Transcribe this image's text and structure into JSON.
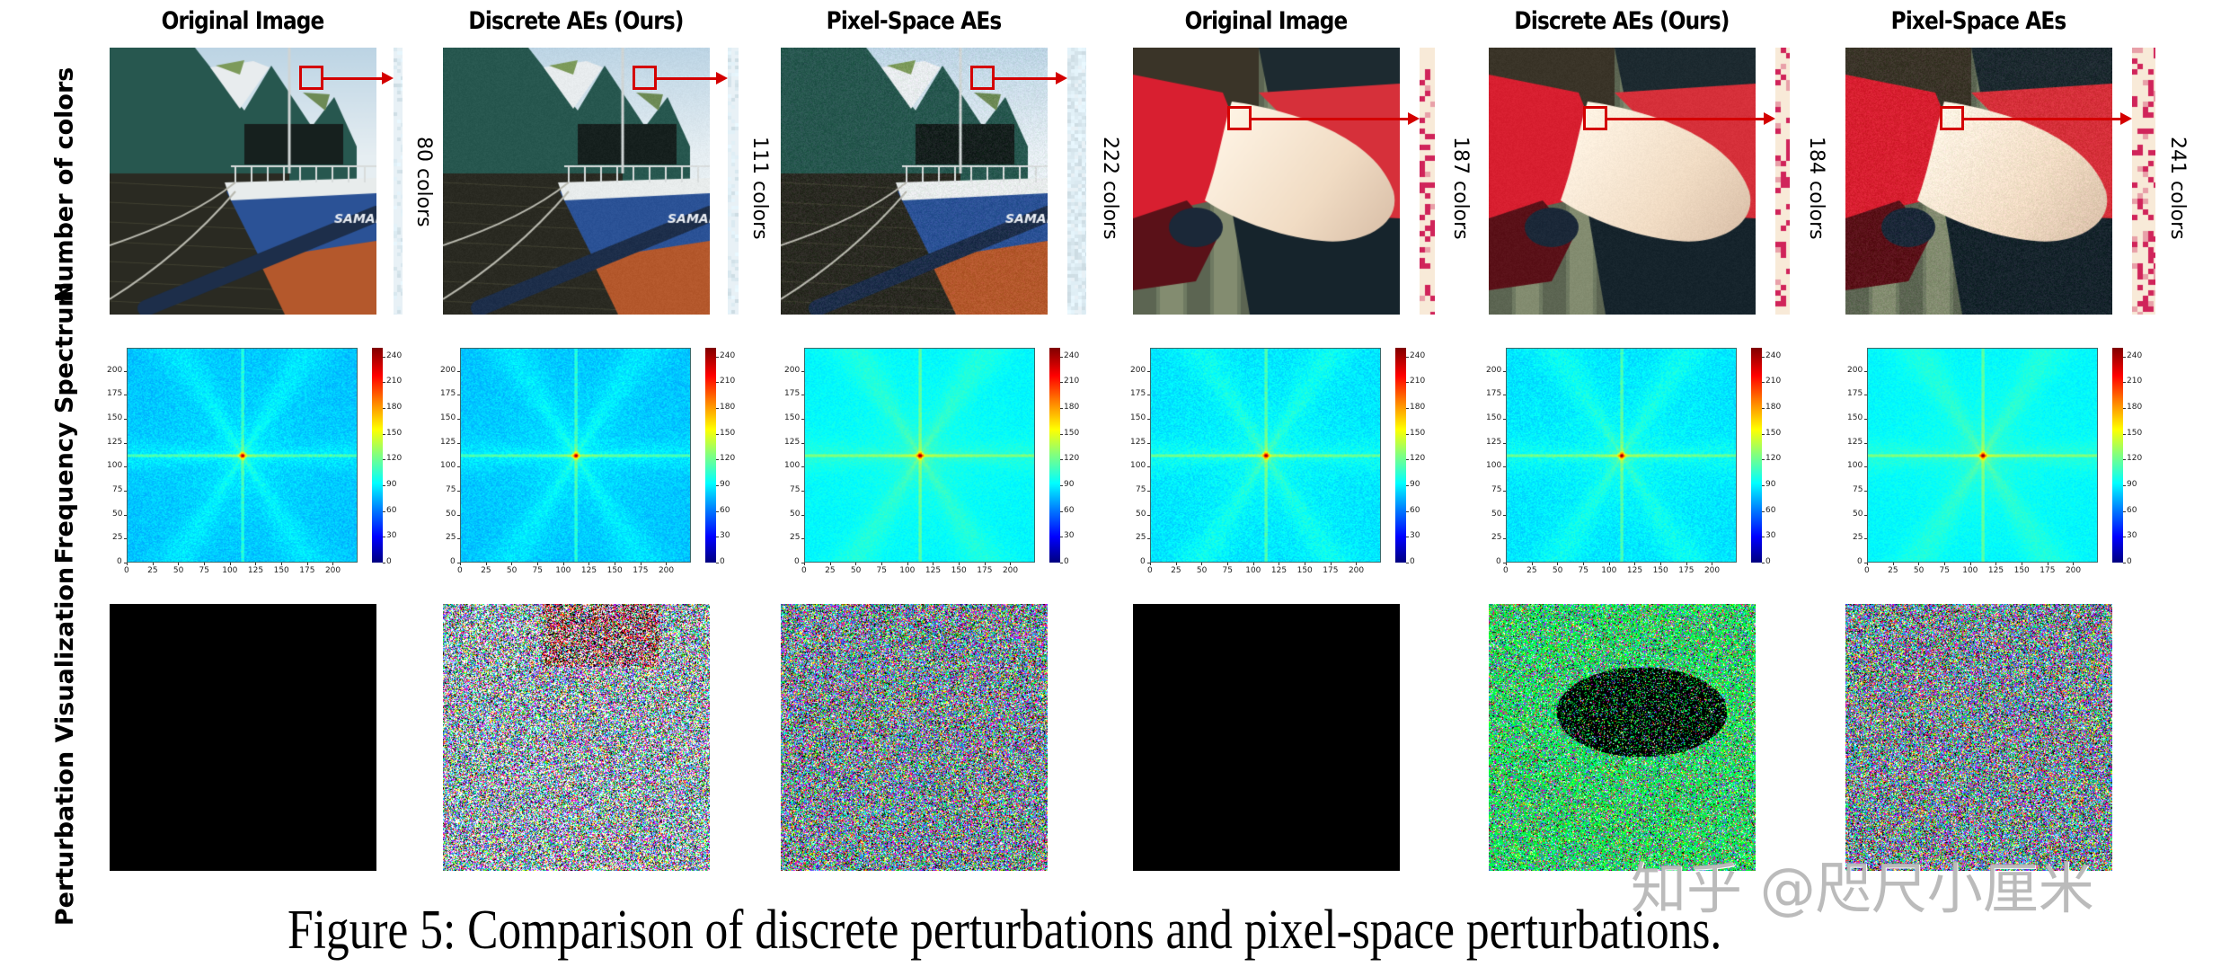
{
  "figure": {
    "caption": "Figure 5: Comparison of discrete perturbations and pixel-space perturbations.",
    "watermark": "知乎 @咫尺小厘米",
    "row_labels": [
      "Number of colors",
      "Frequency Spectrum",
      "Perturbation Visualization"
    ],
    "columns": [
      {
        "title": "Original Image",
        "colors_label": "80 colors",
        "subject": "ship",
        "variant": "original",
        "num_colors": 80
      },
      {
        "title": "Discrete AEs (Ours)",
        "colors_label": "111 colors",
        "subject": "ship",
        "variant": "discrete",
        "num_colors": 111
      },
      {
        "title": "Pixel-Space AEs",
        "colors_label": "222 colors",
        "subject": "ship",
        "variant": "pixel",
        "num_colors": 222
      },
      {
        "title": "Original Image",
        "colors_label": "187 colors",
        "subject": "arm",
        "variant": "original",
        "num_colors": 187
      },
      {
        "title": "Discrete AEs (Ours)",
        "colors_label": "184 colors",
        "subject": "arm",
        "variant": "discrete",
        "num_colors": 184
      },
      {
        "title": "Pixel-Space AEs",
        "colors_label": "241 colors",
        "subject": "arm",
        "variant": "pixel",
        "num_colors": 241
      }
    ],
    "highlight_color": "#d40000"
  },
  "chart_data": {
    "type": "heatmap",
    "title": "Frequency Spectrum",
    "xlabel": "",
    "ylabel": "",
    "x_ticks": [
      "0",
      "25",
      "50",
      "75",
      "100",
      "125",
      "150",
      "175",
      "200"
    ],
    "y_ticks": [
      "0",
      "25",
      "50",
      "75",
      "100",
      "125",
      "150",
      "175",
      "200"
    ],
    "xlim": [
      0,
      224
    ],
    "ylim": [
      0,
      224
    ],
    "colorbar": {
      "colormap": "jet",
      "range": [
        0,
        250
      ],
      "ticks": [
        "0",
        "30",
        "60",
        "90",
        "120",
        "150",
        "180",
        "210",
        "240"
      ]
    },
    "center_peak": [
      112,
      112
    ],
    "panels": 6
  }
}
